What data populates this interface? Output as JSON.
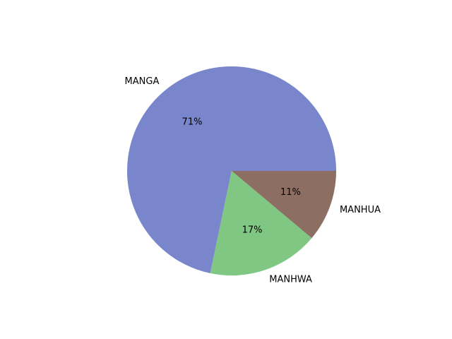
{
  "chart_data": {
    "type": "pie",
    "categories": [
      "MANGA",
      "MANHWA",
      "MANHUA"
    ],
    "values": [
      71,
      17,
      11
    ],
    "percent_labels": [
      "71%",
      "17%",
      "11%"
    ],
    "colors": [
      "#7986cb",
      "#81c784",
      "#8d6e63"
    ],
    "start_angle_deg": 0,
    "direction": "counterclockwise",
    "legend": "none",
    "title": ""
  }
}
